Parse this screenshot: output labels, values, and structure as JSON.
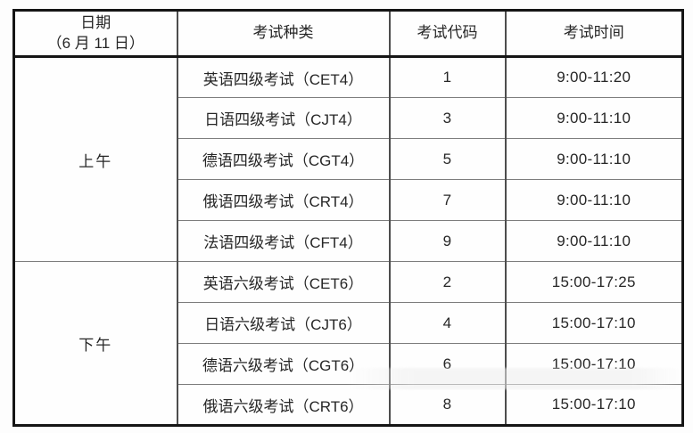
{
  "table": {
    "header": {
      "date_line1": "日期",
      "date_line2": "（6 月 11 日）",
      "type": "考试种类",
      "code": "考试代码",
      "time": "考试时间"
    },
    "sections": [
      {
        "period": "上午",
        "rows": [
          {
            "type": "英语四级考试（CET4）",
            "code": "1",
            "time": "9:00-11:20"
          },
          {
            "type": "日语四级考试（CJT4）",
            "code": "3",
            "time": "9:00-11:10"
          },
          {
            "type": "德语四级考试（CGT4）",
            "code": "5",
            "time": "9:00-11:10"
          },
          {
            "type": "俄语四级考试（CRT4）",
            "code": "7",
            "time": "9:00-11:10"
          },
          {
            "type": "法语四级考试（CFT4）",
            "code": "9",
            "time": "9:00-11:10"
          }
        ]
      },
      {
        "period": "下午",
        "rows": [
          {
            "type": "英语六级考试（CET6）",
            "code": "2",
            "time": "15:00-17:25"
          },
          {
            "type": "日语六级考试（CJT6）",
            "code": "4",
            "time": "15:00-17:10"
          },
          {
            "type": "德语六级考试（CGT6）",
            "code": "6",
            "time": "15:00-17:10"
          },
          {
            "type": "俄语六级考试（CRT6）",
            "code": "8",
            "time": "15:00-17:10"
          }
        ]
      }
    ]
  },
  "colors": {
    "outer_border": "#151515",
    "inner_border": "#7d7d7d",
    "text": "#262626",
    "background": "#fdfdfd"
  }
}
